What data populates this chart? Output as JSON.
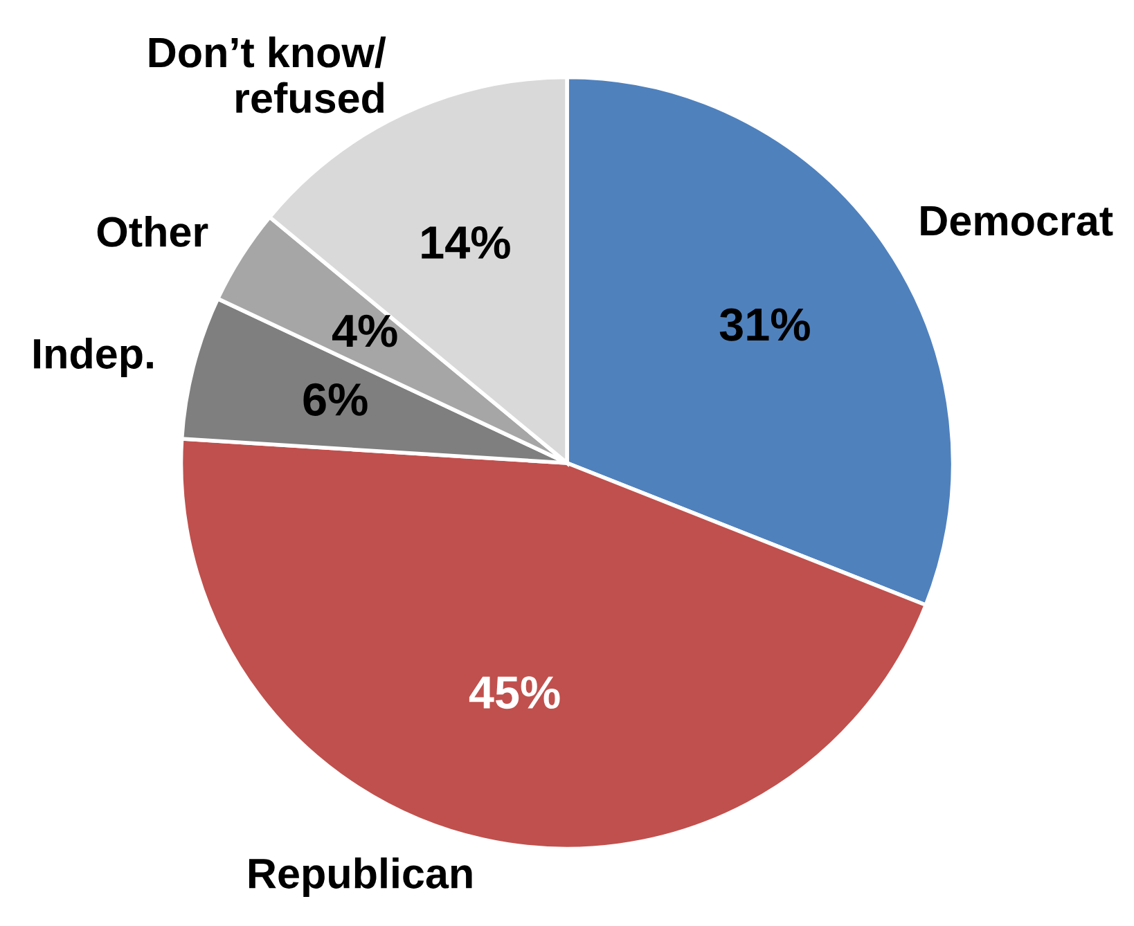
{
  "chart_data": {
    "type": "pie",
    "categories": [
      "Democrat",
      "Republican",
      "Indep.",
      "Other",
      "Don’t know/\nrefused"
    ],
    "values": [
      31,
      45,
      6,
      4,
      14
    ],
    "colors": [
      "#4f81bd",
      "#c0504d",
      "#7f7f7f",
      "#a6a6a6",
      "#d9d9d9"
    ],
    "value_labels": [
      "31%",
      "45%",
      "6%",
      "4%",
      "14%"
    ]
  }
}
